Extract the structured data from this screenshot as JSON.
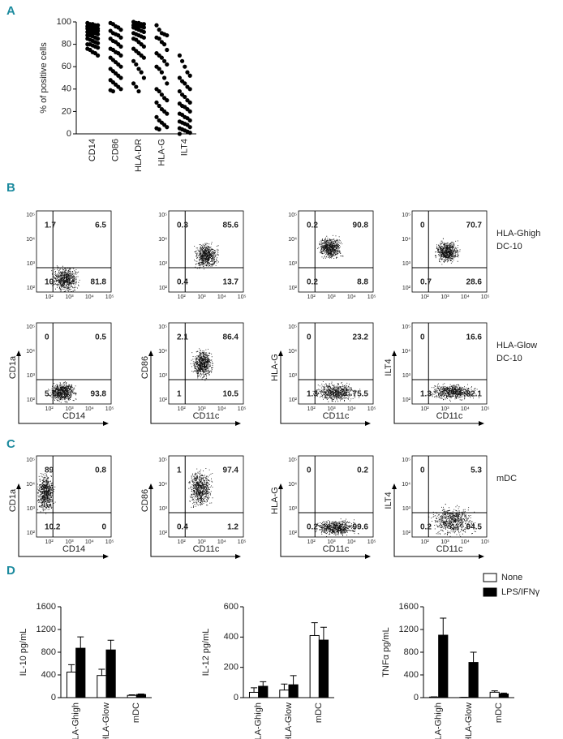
{
  "panel_labels": [
    "A",
    "B",
    "C",
    "D"
  ],
  "chart_data": [
    {
      "type": "strip",
      "ylabel": "% of positive cells",
      "color": "#000000",
      "categories": [
        "CD14",
        "CD86",
        "HLA-DR",
        "HLA-G",
        "ILT4"
      ],
      "values": [
        [
          99,
          98,
          98,
          97,
          97,
          96,
          96,
          95,
          95,
          94,
          94,
          93,
          93,
          92,
          92,
          91,
          91,
          90,
          90,
          89,
          88,
          88,
          87,
          86,
          85,
          85,
          84,
          83,
          82,
          81,
          80,
          80,
          79,
          78,
          77,
          76,
          75,
          73,
          72,
          70
        ],
        [
          99,
          98,
          96,
          95,
          93,
          92,
          90,
          89,
          88,
          86,
          85,
          83,
          82,
          80,
          78,
          76,
          75,
          73,
          72,
          70,
          68,
          66,
          64,
          62,
          60,
          58,
          56,
          54,
          52,
          50,
          48,
          46,
          44,
          42,
          40,
          39,
          38
        ],
        [
          100,
          99,
          99,
          98,
          98,
          97,
          97,
          96,
          96,
          95,
          95,
          94,
          93,
          92,
          91,
          90,
          89,
          88,
          87,
          86,
          85,
          84,
          82,
          80,
          78,
          76,
          74,
          72,
          70,
          68,
          65,
          62,
          58,
          55,
          50,
          45,
          42,
          38
        ],
        [
          97,
          93,
          90,
          89,
          88,
          86,
          85,
          82,
          80,
          75,
          72,
          70,
          68,
          65,
          62,
          60,
          58,
          55,
          50,
          45,
          40,
          38,
          35,
          32,
          30,
          28,
          25,
          22,
          20,
          18,
          15,
          12,
          10,
          8,
          6,
          5,
          4
        ],
        [
          70,
          65,
          60,
          55,
          52,
          50,
          47,
          45,
          42,
          40,
          38,
          35,
          33,
          30,
          28,
          27,
          25,
          24,
          22,
          20,
          18,
          17,
          15,
          14,
          12,
          11,
          10,
          9,
          8,
          6,
          5,
          4,
          3,
          2,
          1,
          0
        ]
      ],
      "ylim": [
        0,
        100
      ],
      "yticks": [
        0,
        20,
        40,
        60,
        80,
        100
      ]
    },
    {
      "type": "bar",
      "ylabel": "IL-10 pg/mL",
      "categories": [
        "HLA-Ghigh",
        "HLA-Glow",
        "mDC"
      ],
      "series": [
        {
          "color": "#ffffff",
          "values": [
            450,
            390,
            40
          ],
          "errors": [
            130,
            110,
            10
          ]
        },
        {
          "color": "#000000",
          "values": [
            870,
            840,
            55
          ],
          "errors": [
            200,
            170,
            10
          ]
        }
      ],
      "ylim": [
        0,
        1600
      ],
      "yticks": [
        0,
        400,
        800,
        1200,
        1600
      ]
    },
    {
      "type": "bar",
      "ylabel": "IL-12 pg/mL",
      "categories": [
        "HLA-Ghigh",
        "HLA-Glow",
        "mDC"
      ],
      "series": [
        {
          "color": "#ffffff",
          "values": [
            35,
            50,
            410
          ],
          "errors": [
            30,
            40,
            85
          ]
        },
        {
          "color": "#000000",
          "values": [
            75,
            85,
            380
          ],
          "errors": [
            30,
            60,
            85
          ]
        }
      ],
      "ylim": [
        0,
        600
      ],
      "yticks": [
        0,
        200,
        400,
        600
      ]
    },
    {
      "type": "bar",
      "ylabel": "TNFα pg/mL",
      "categories": [
        "HLA-Ghigh",
        "HLA-Glow",
        "mDC"
      ],
      "legend": "upper right",
      "series": [
        {
          "name": "None",
          "color": "#ffffff",
          "values": [
            10,
            5,
            95
          ],
          "errors": [
            5,
            3,
            25
          ]
        },
        {
          "name": "LPS/IFNγ",
          "color": "#000000",
          "values": [
            1100,
            620,
            65
          ],
          "errors": [
            300,
            180,
            15
          ]
        }
      ],
      "ylim": [
        0,
        1600
      ],
      "yticks": [
        0,
        400,
        800,
        1200,
        1600
      ]
    }
  ],
  "flow": {
    "tick_labels": [
      "10²",
      "10³",
      "10⁴",
      "10⁵"
    ],
    "x_labels": [
      "CD14",
      "CD11c",
      "CD11c",
      "CD11c"
    ],
    "y_labels": [
      "CD1a",
      "CD86",
      "HLA-G",
      "ILT4"
    ],
    "rows": [
      {
        "label": [
          "HLA-Ghigh",
          "DC-10"
        ],
        "quadrants": [
          [
            1.7,
            6.5,
            10,
            81.8
          ],
          [
            0.3,
            85.6,
            0.4,
            13.7
          ],
          [
            0.2,
            90.8,
            0.2,
            8.8
          ],
          [
            0,
            70.7,
            0.7,
            28.6
          ]
        ]
      },
      {
        "label": [
          "HLA-Glow",
          "DC-10"
        ],
        "quadrants": [
          [
            0,
            0.5,
            5.7,
            93.8
          ],
          [
            2.1,
            86.4,
            1,
            10.5
          ],
          [
            0,
            23.2,
            1.3,
            75.5
          ],
          [
            0,
            16.6,
            1.3,
            82.1
          ]
        ]
      },
      {
        "label": [
          "mDC"
        ],
        "quadrants": [
          [
            89,
            0.8,
            10.2,
            0
          ],
          [
            1,
            97.4,
            0.4,
            1.2
          ],
          [
            0,
            0.2,
            0.2,
            99.6
          ],
          [
            0,
            5.3,
            0.2,
            94.5
          ]
        ]
      }
    ]
  }
}
